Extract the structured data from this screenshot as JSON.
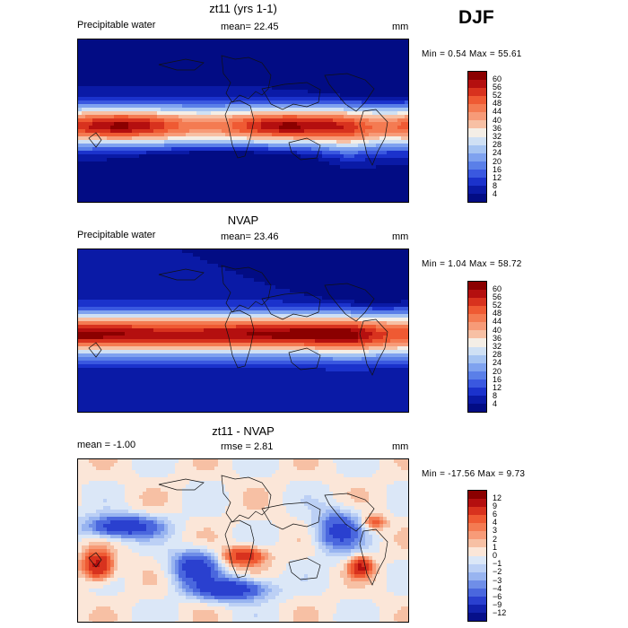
{
  "season": "DJF",
  "panels": [
    {
      "title": "zt11 (yrs 1-1)",
      "left_label": "Precipitable water",
      "mean_text": "mean=  22.45",
      "unit": "mm",
      "range_text": "Min =   0.54 Max =  55.61",
      "kind": "model",
      "colorbar": {
        "labels": [
          "60",
          "56",
          "52",
          "48",
          "44",
          "40",
          "36",
          "32",
          "28",
          "24",
          "20",
          "16",
          "12",
          "8",
          "4"
        ],
        "colors": [
          "#8b0000",
          "#b40f0f",
          "#d8321e",
          "#ef5a33",
          "#f47b52",
          "#f79b78",
          "#f7c0a4",
          "#f4eee6",
          "#cfe0f4",
          "#a6c4f2",
          "#7fa2ef",
          "#5a7fe8",
          "#3a58e0",
          "#1b32cc",
          "#0a1aa6",
          "#020c84"
        ]
      }
    },
    {
      "title": "NVAP",
      "left_label": "Precipitable water",
      "mean_text": "mean=  23.46",
      "unit": "mm",
      "range_text": "Min =   1.04 Max =  58.72",
      "kind": "obs",
      "colorbar": {
        "labels": [
          "60",
          "56",
          "52",
          "48",
          "44",
          "40",
          "36",
          "32",
          "28",
          "24",
          "20",
          "16",
          "12",
          "8",
          "4"
        ],
        "colors": [
          "#8b0000",
          "#b40f0f",
          "#d8321e",
          "#ef5a33",
          "#f47b52",
          "#f79b78",
          "#f7c0a4",
          "#f4eee6",
          "#cfe0f4",
          "#a6c4f2",
          "#7fa2ef",
          "#5a7fe8",
          "#3a58e0",
          "#1b32cc",
          "#0a1aa6",
          "#020c84"
        ]
      }
    },
    {
      "title": "zt11 - NVAP",
      "left_label": "mean =  -1.00",
      "mean_text": "rmse =   2.81",
      "unit": "mm",
      "range_text": "Min = -17.56 Max =   9.73",
      "kind": "diff",
      "colorbar": {
        "labels": [
          "12",
          "9",
          "6",
          "4",
          "3",
          "2",
          "1",
          "0",
          "−1",
          "−2",
          "−3",
          "−4",
          "−6",
          "−9",
          "−12"
        ],
        "colors": [
          "#8b0000",
          "#b40f0f",
          "#d8321e",
          "#ef5a33",
          "#f47b52",
          "#f79b78",
          "#f7c0a4",
          "#fbe6d8",
          "#dbe7f7",
          "#bcd0f5",
          "#98b4f0",
          "#6f8ee8",
          "#4a67de",
          "#2a40cf",
          "#1222ad",
          "#06108a"
        ]
      }
    }
  ]
}
